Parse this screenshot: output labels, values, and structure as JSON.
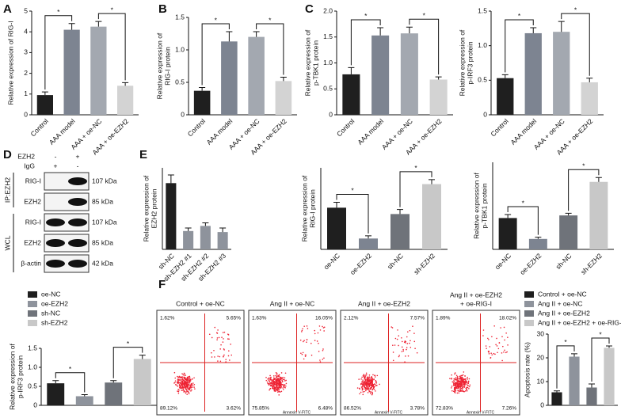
{
  "panel_labels": [
    "A",
    "B",
    "C",
    "D",
    "E",
    "F"
  ],
  "chart_data": [
    {
      "type": "bar",
      "ylabel": [
        "Relative expression of RIG-I"
      ],
      "categories": [
        "Control",
        "AAA model",
        "AAA + oe-NC",
        "AAA + oe-EZH2"
      ],
      "values": [
        0.95,
        4.1,
        4.25,
        1.4
      ],
      "errors": [
        0.15,
        0.3,
        0.25,
        0.15
      ],
      "colors": [
        "#1f1f1f",
        "#7d8491",
        "#a3a8b0",
        "#d3d3d3"
      ],
      "ylim": [
        0,
        5
      ],
      "yticks": [
        0,
        1,
        2,
        3,
        4,
        5
      ],
      "annotations": [
        "*",
        "*"
      ]
    },
    {
      "type": "bar",
      "ylabel": [
        "Relative expression of",
        "RIG-I protein"
      ],
      "categories": [
        "Control",
        "AAA model",
        "AAA + oe-NC",
        "AAA + oe-EZH2"
      ],
      "values": [
        0.37,
        1.13,
        1.2,
        0.52
      ],
      "errors": [
        0.05,
        0.15,
        0.08,
        0.06
      ],
      "colors": [
        "#1f1f1f",
        "#7d8491",
        "#a3a8b0",
        "#d3d3d3"
      ],
      "ylim": [
        0,
        1.5
      ],
      "yticks": [
        0,
        0.5,
        {
          "value": 1,
          "label": "1.0"
        },
        1.5
      ],
      "annotations": [
        "*",
        "*"
      ]
    },
    {
      "type": "bar",
      "ylabel": [
        "Relative expression of",
        "p-TBK1 protein"
      ],
      "categories": [
        "Control",
        "AAA model",
        "AAA + oe-NC",
        "AAA + oe-EZH2"
      ],
      "values": [
        0.78,
        1.53,
        1.57,
        0.68
      ],
      "errors": [
        0.13,
        0.15,
        0.12,
        0.05
      ],
      "colors": [
        "#1f1f1f",
        "#7d8491",
        "#a3a8b0",
        "#d3d3d3"
      ],
      "ylim": [
        0,
        2
      ],
      "yticks": [
        0,
        0.5,
        {
          "value": 1,
          "label": "1.0"
        },
        1.5,
        {
          "value": 2,
          "label": "2.0"
        }
      ],
      "annotations": [
        "*",
        "*"
      ]
    },
    {
      "type": "bar",
      "ylabel": [
        "Relative expression of",
        "p-IRF3 protein"
      ],
      "categories": [
        "Control",
        "AAA model",
        "AAA + oe-NC",
        "AAA + oe-EZH2"
      ],
      "values": [
        0.53,
        1.18,
        1.2,
        0.47
      ],
      "errors": [
        0.05,
        0.08,
        0.15,
        0.06
      ],
      "colors": [
        "#1f1f1f",
        "#7d8491",
        "#a3a8b0",
        "#d3d3d3"
      ],
      "ylim": [
        0,
        1.5
      ],
      "yticks": [
        0,
        0.5,
        {
          "value": 1,
          "label": "1.0"
        },
        1.5
      ],
      "annotations": [
        "*",
        "*"
      ]
    },
    {
      "type": "bar",
      "ylabel": [
        "Relative expression of",
        "EZH2 protein"
      ],
      "categories": [
        "sh-NC",
        "sh-EZH2 #1",
        "sh-EZH2 #2",
        "sh-EZH2 #3"
      ],
      "values": [
        0.65,
        0.18,
        0.23,
        0.17
      ],
      "errors": [
        0.08,
        0.03,
        0.03,
        0.04
      ],
      "colors": [
        "#1f1f1f",
        "#8e939c",
        "#8e939c",
        "#8e939c"
      ],
      "ylim": [
        0,
        0.8
      ]
    },
    {
      "type": "bar",
      "ylabel": [
        "Relative expression of",
        "RIG-I protein"
      ],
      "categories": [
        "oe-NC",
        "oe-EZH2",
        "sh-NC",
        "sh-EZH2"
      ],
      "values": [
        0.46,
        0.12,
        0.39,
        0.72
      ],
      "errors": [
        0.06,
        0.03,
        0.05,
        0.05
      ],
      "colors": [
        "#1f1f1f",
        "#7d8491",
        "#6f737a",
        "#c8c8c8"
      ],
      "ylim": [
        0,
        0.9
      ],
      "annotations": [
        "*",
        "*"
      ]
    },
    {
      "type": "bar",
      "ylabel": [
        "Relative expression of",
        "p-TBK1 protein"
      ],
      "categories": [
        "oe-NC",
        "oe-EZH2",
        "sh-NC",
        "sh-EZH2"
      ],
      "values": [
        0.72,
        0.24,
        0.78,
        1.55
      ],
      "errors": [
        0.08,
        0.04,
        0.05,
        0.1
      ],
      "colors": [
        "#1f1f1f",
        "#7d8491",
        "#6f737a",
        "#c8c8c8"
      ],
      "ylim": [
        0,
        2
      ],
      "annotations": [
        "*",
        "*"
      ]
    },
    {
      "type": "bar",
      "ylabel": [
        "Relative expression of",
        "p-IRF3 protein"
      ],
      "legend": [
        "oe-NC",
        "oe-EZH2",
        "sh-NC",
        "sh-EZH2"
      ],
      "values": [
        0.58,
        0.24,
        0.6,
        1.22
      ],
      "errors": [
        0.07,
        0.04,
        0.05,
        0.1
      ],
      "colors": [
        "#1f1f1f",
        "#8e939c",
        "#6f737a",
        "#c8c8c8"
      ],
      "ylim": [
        0,
        1.5
      ],
      "yticks": [
        0,
        0.5,
        {
          "value": 1,
          "label": "1.0"
        },
        1.5
      ],
      "annotations": [
        "*",
        "*"
      ]
    },
    {
      "type": "bar",
      "ylabel": [
        "Apoptosis rate (%)"
      ],
      "legend": [
        "Control + oe-NC",
        "Ang II + oe-NC",
        "Ang II + oe-EZH2",
        "Ang II + oe-EZH2 + oe-RIG-I"
      ],
      "values": [
        5.5,
        20.5,
        7.5,
        24.2
      ],
      "errors": [
        0.6,
        1.2,
        1.5,
        0.8
      ],
      "colors": [
        "#1f1f1f",
        "#8e939c",
        "#6f737a",
        "#c8c8c8"
      ],
      "ylim": [
        0,
        30
      ],
      "yticks": [
        0,
        10,
        20,
        30
      ],
      "annotations": [
        "*",
        "*"
      ]
    }
  ],
  "blot": {
    "treatments": [
      [
        "EZH2",
        "-",
        "+"
      ],
      [
        "IgG",
        "+",
        "-"
      ]
    ],
    "groups": [
      "IP:EZH2",
      "WCL"
    ],
    "bands": [
      [
        "RIG-I",
        "107 kDa"
      ],
      [
        "EZH2",
        "85 kDa"
      ],
      [
        "RIG-I",
        "107 kDa"
      ],
      [
        "EZH2",
        "85 kDa"
      ],
      [
        "β-actin",
        "42 kDa"
      ]
    ]
  },
  "flow_plots": [
    {
      "title": [
        "Control + oe-NC"
      ],
      "quadrants": [
        "1.62%",
        "5.65%",
        "89.12%",
        "3.62%"
      ]
    },
    {
      "title": [
        "Ang II + oe-NC"
      ],
      "quadrants": [
        "1.63%",
        "16.05%",
        "75.85%",
        "6.48%"
      ],
      "x_label": "Annexin V-FITC"
    },
    {
      "title": [
        "Ang II + oe-EZH2"
      ],
      "quadrants": [
        "2.12%",
        "7.57%",
        "86.52%",
        "3.78%"
      ],
      "x_label": "Annexin V-FITC"
    },
    {
      "title": [
        "Ang II + oe-EZH2",
        "+ oe-RIG-I"
      ],
      "quadrants": [
        "1.89%",
        "18.02%",
        "72.83%",
        "7.26%"
      ],
      "x_label": "Annexin V-FITC"
    }
  ]
}
